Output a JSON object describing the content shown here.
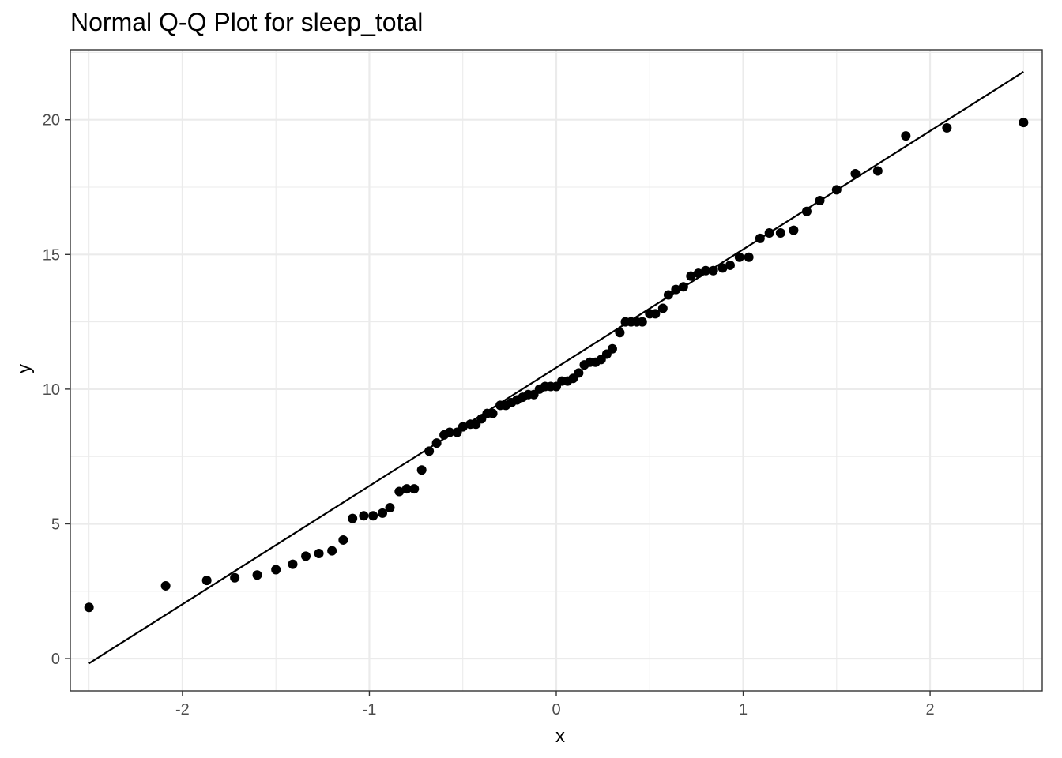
{
  "chart_data": {
    "type": "scatter",
    "title": "Normal Q-Q Plot for sleep_total",
    "xlabel": "x",
    "ylabel": "y",
    "xlim": [
      -2.6,
      2.6
    ],
    "ylim": [
      -1.2,
      22.6
    ],
    "x_ticks": [
      -2,
      -1,
      0,
      1,
      2
    ],
    "x_tick_labels": [
      "-2",
      "-1",
      "0",
      "1",
      "2"
    ],
    "y_ticks": [
      0,
      5,
      10,
      15,
      20
    ],
    "y_tick_labels": [
      "0",
      "5",
      "10",
      "15",
      "20"
    ],
    "grid": true,
    "legend": "none",
    "reference_line": {
      "x": [
        -2.5,
        2.5
      ],
      "y": [
        -0.18,
        21.78
      ]
    },
    "points": {
      "x": [
        -2.5,
        -2.09,
        -1.87,
        -1.72,
        -1.6,
        -1.5,
        -1.41,
        -1.34,
        -1.27,
        -1.2,
        -1.14,
        -1.09,
        -1.03,
        -0.98,
        -0.93,
        -0.89,
        -0.84,
        -0.8,
        -0.76,
        -0.72,
        -0.68,
        -0.64,
        -0.6,
        -0.57,
        -0.53,
        -0.5,
        -0.46,
        -0.43,
        -0.4,
        -0.37,
        -0.34,
        -0.3,
        -0.27,
        -0.24,
        -0.21,
        -0.18,
        -0.15,
        -0.12,
        -0.09,
        -0.06,
        -0.03,
        0,
        0.03,
        0.06,
        0.09,
        0.12,
        0.15,
        0.18,
        0.21,
        0.24,
        0.27,
        0.3,
        0.34,
        0.37,
        0.4,
        0.43,
        0.46,
        0.5,
        0.53,
        0.57,
        0.6,
        0.64,
        0.68,
        0.72,
        0.76,
        0.8,
        0.84,
        0.89,
        0.93,
        0.98,
        1.03,
        1.09,
        1.14,
        1.2,
        1.27,
        1.34,
        1.41,
        1.5,
        1.6,
        1.72,
        1.87,
        2.09,
        2.5
      ],
      "y": [
        1.9,
        2.7,
        2.9,
        3.0,
        3.1,
        3.3,
        3.5,
        3.8,
        3.9,
        4.0,
        4.4,
        5.2,
        5.3,
        5.3,
        5.4,
        5.6,
        6.2,
        6.3,
        6.3,
        7.0,
        7.7,
        8.0,
        8.3,
        8.4,
        8.4,
        8.6,
        8.7,
        8.7,
        8.9,
        9.1,
        9.1,
        9.4,
        9.4,
        9.5,
        9.6,
        9.7,
        9.8,
        9.8,
        10.0,
        10.1,
        10.1,
        10.1,
        10.3,
        10.3,
        10.4,
        10.6,
        10.9,
        11.0,
        11.0,
        11.1,
        11.3,
        11.5,
        12.1,
        12.5,
        12.5,
        12.5,
        12.5,
        12.8,
        12.8,
        13.0,
        13.5,
        13.7,
        13.8,
        14.2,
        14.3,
        14.4,
        14.4,
        14.5,
        14.6,
        14.9,
        14.9,
        15.6,
        15.8,
        15.8,
        15.9,
        16.6,
        17.0,
        17.4,
        18.0,
        18.1,
        19.4,
        19.7,
        19.9
      ]
    }
  }
}
